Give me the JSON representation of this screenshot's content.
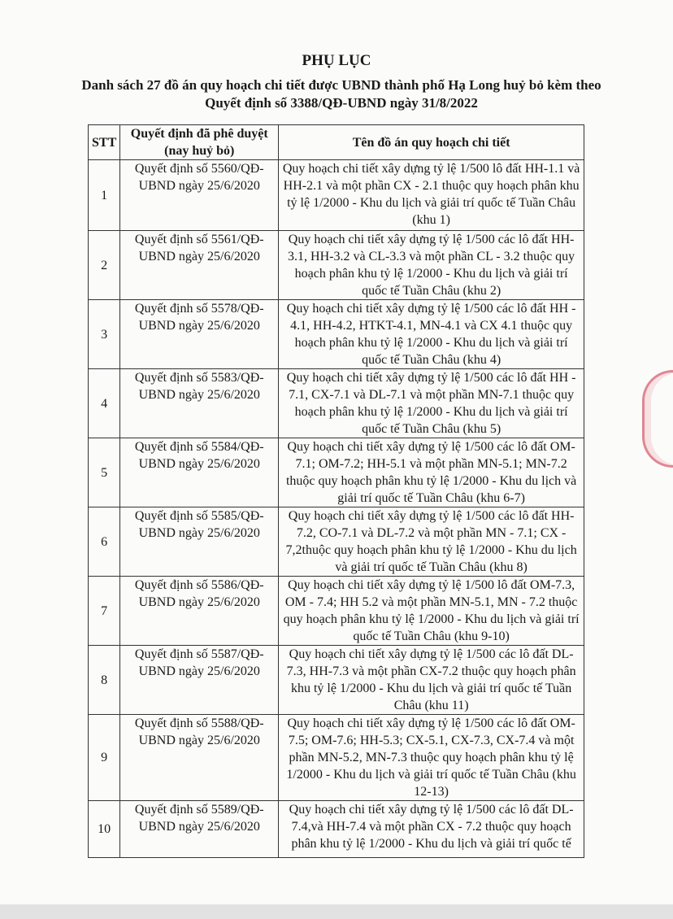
{
  "title": "PHỤ LỤC",
  "subtitle": "Danh sách 27 đồ án quy hoạch chi tiết được UBND thành phố Hạ Long huỷ bỏ kèm theo Quyết định số 3388/QĐ-UBND ngày 31/8/2022",
  "table": {
    "headers": [
      "STT",
      "Quyết định đã phê duyệt (nay huỷ bỏ)",
      "Tên đồ án quy hoạch chi tiết"
    ],
    "rows": [
      {
        "stt": "1",
        "decision": "Quyết định số 5560/QĐ-UBND ngày 25/6/2020",
        "name": "Quy hoạch chi tiết xây dựng tỷ lệ 1/500 lô đất HH-1.1 và HH-2.1 và một phần CX - 2.1 thuộc quy hoạch phân khu tỷ lệ 1/2000 - Khu du lịch và giải trí quốc tế Tuần Châu (khu 1)"
      },
      {
        "stt": "2",
        "decision": "Quyết định số 5561/QĐ-UBND ngày 25/6/2020",
        "name": "Quy hoạch chi tiết xây dựng tỷ lệ 1/500 các lô đất HH-3.1, HH-3.2 và CL-3.3 và một phần CL - 3.2 thuộc quy hoạch phân khu tỷ lệ 1/2000 - Khu du lịch và giải trí quốc tế Tuần Châu (khu 2)"
      },
      {
        "stt": "3",
        "decision": "Quyết định số 5578/QĐ-UBND ngày 25/6/2020",
        "name": "Quy hoạch chi tiết xây dựng tỷ lệ 1/500 các lô đất HH - 4.1, HH-4.2, HTKT-4.1, MN-4.1 và CX 4.1 thuộc quy hoạch phân khu tỷ lệ 1/2000 - Khu du lịch và giải trí quốc tế Tuần Châu (khu 4)"
      },
      {
        "stt": "4",
        "decision": "Quyết định số 5583/QĐ-UBND ngày 25/6/2020",
        "name": "Quy hoạch chi tiết xây dựng tỷ lệ 1/500 các lô đất HH - 7.1, CX-7.1 và DL-7.1 và một phần MN-7.1 thuộc quy hoạch phân khu tỷ lệ 1/2000 - Khu du lịch và giải trí quốc tế Tuần Châu (khu 5)"
      },
      {
        "stt": "5",
        "decision": "Quyết định số 5584/QĐ-UBND ngày 25/6/2020",
        "name": "Quy hoạch chi tiết xây dựng tỷ lệ 1/500 các lô đất OM-7.1; OM-7.2; HH-5.1 và một phần MN-5.1; MN-7.2 thuộc quy hoạch phân khu tỷ lệ 1/2000 - Khu du lịch và giải trí quốc tế Tuần Châu (khu 6-7)"
      },
      {
        "stt": "6",
        "decision": "Quyết định số 5585/QĐ-UBND ngày 25/6/2020",
        "name": "Quy hoạch chi tiết xây dựng tỷ lệ 1/500 các lô đất HH-7.2, CO-7.1 và DL-7.2 và một phần MN - 7.1; CX - 7,2thuộc quy hoạch phân khu tỷ lệ 1/2000 - Khu du lịch và giải trí quốc tế Tuần Châu (khu 8)"
      },
      {
        "stt": "7",
        "decision": "Quyết định số 5586/QĐ-UBND ngày 25/6/2020",
        "name": "Quy hoạch chi tiết xây dựng tỷ lệ 1/500 lô đất OM-7.3, OM - 7.4; HH 5.2 và một phần MN-5.1, MN - 7.2 thuộc quy hoạch phân khu tỷ lệ 1/2000 - Khu du lịch và giải trí quốc tế Tuần Châu (khu 9-10)"
      },
      {
        "stt": "8",
        "decision": "Quyết định số 5587/QĐ-UBND ngày 25/6/2020",
        "name": "Quy hoạch chi tiết xây dựng tỷ lệ 1/500 các lô đất DL-7.3, HH-7.3 và một phần CX-7.2 thuộc quy hoạch phân khu tỷ lệ 1/2000 - Khu du lịch và giải trí quốc tế Tuần Châu (khu 11)"
      },
      {
        "stt": "9",
        "decision": "Quyết định số 5588/QĐ-UBND ngày 25/6/2020",
        "name": "Quy hoạch chi tiết xây dựng tỷ lệ 1/500 các lô đất OM-7.5; OM-7.6; HH-5.3; CX-5.1, CX-7.3, CX-7.4 và một phần MN-5.2, MN-7.3 thuộc quy hoạch phân khu tỷ lệ 1/2000 - Khu du lịch và giải trí quốc tế Tuần Châu (khu 12-13)"
      },
      {
        "stt": "10",
        "decision": "Quyết định số 5589/QĐ-UBND ngày 25/6/2020",
        "name": "Quy hoạch chi tiết xây dựng tỷ lệ 1/500 các lô đất DL-7.4,và HH-7.4 và một phần CX - 7.2 thuộc quy hoạch phân khu tỷ lệ 1/2000 - Khu du lịch và giải trí quốc tế"
      }
    ]
  },
  "colors": {
    "stamp": "#c8283c",
    "ink": "#1a1a1a"
  }
}
